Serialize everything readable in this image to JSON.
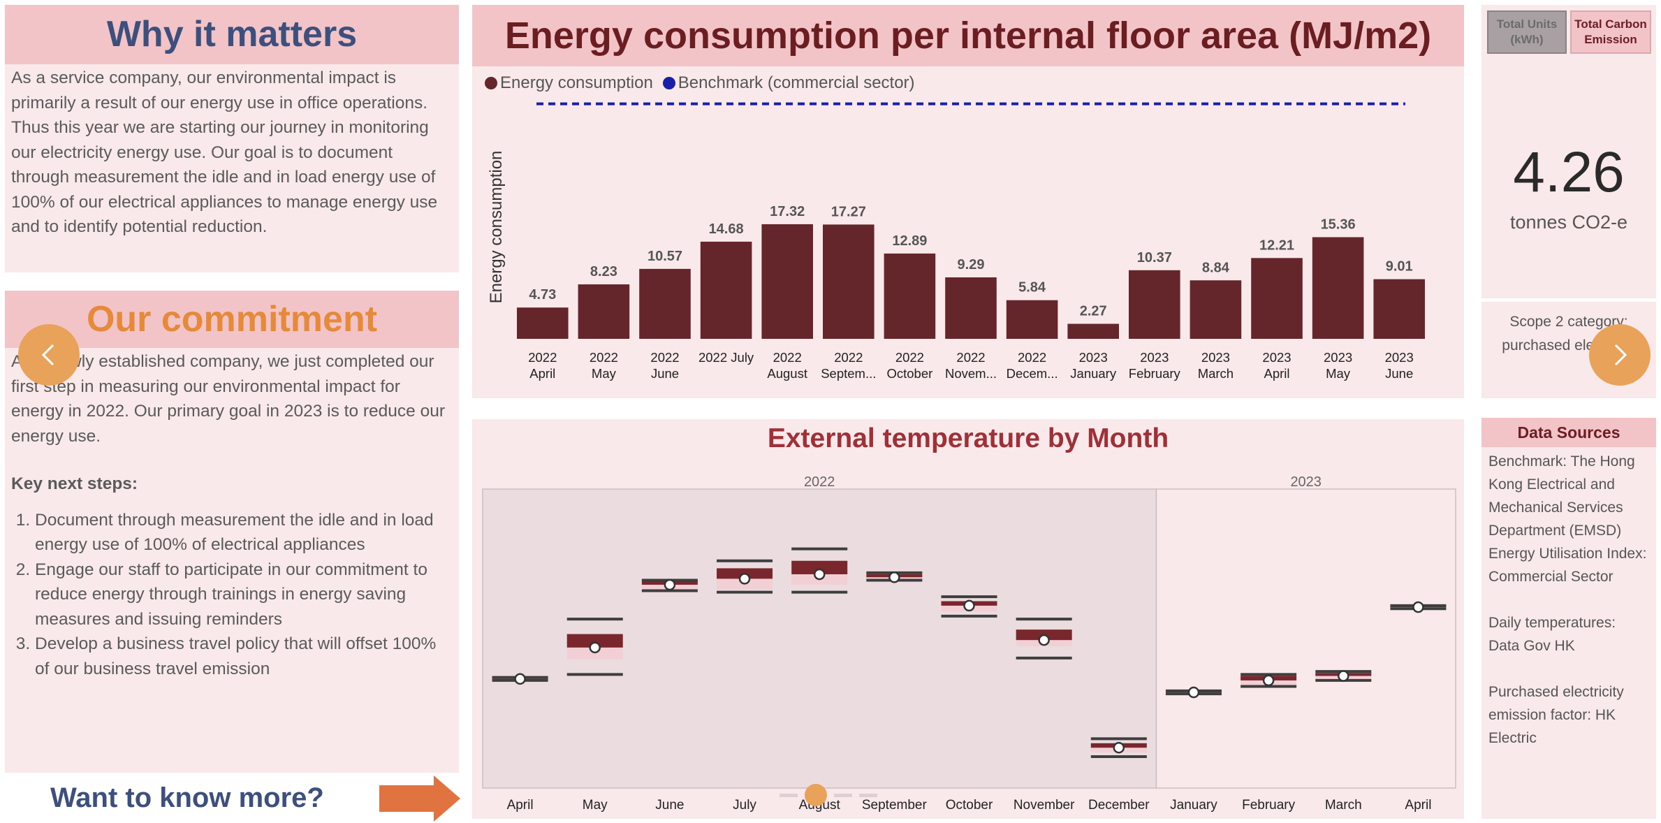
{
  "why": {
    "title": "Why it matters",
    "body": "As a service company, our environmental impact is primarily a result of our energy use in office operations. Thus this year we are starting our journey in monitoring our electricity energy use. Our goal is to document through measurement the idle and in load energy use of 100% of our electrical appliances to manage energy use and to identify potential reduction."
  },
  "commitment": {
    "title": "Our commitment",
    "body": "As a newly established company, we just completed our first step in measuring our environmental impact for energy in 2022. Our primary goal in 2023 is to reduce our energy use.",
    "key_label": "Key next steps:",
    "steps": [
      "Document through measurement the idle and in load energy use of 100% of electrical appliances",
      "Engage our staff to participate in our commitment to reduce energy through trainings in energy saving measures and issuing reminders",
      "Develop a business travel policy that will offset 100% of our business travel emission"
    ]
  },
  "more": {
    "label": "Want to know more?"
  },
  "energy": {
    "title": "Energy consumption per internal floor area (MJ/m2)",
    "legend": [
      {
        "label": "Energy consumption",
        "color": "#64262a"
      },
      {
        "label": "Benchmark (commercial sector)",
        "color": "#1a1fa8"
      }
    ]
  },
  "temp": {
    "title": "External temperature by Month"
  },
  "toggle": {
    "units_label": "Total Units (kWh)",
    "carbon_label": "Total Carbon Emission"
  },
  "kpi": {
    "value": "4.26",
    "unit": "tonnes CO2-e"
  },
  "scope": {
    "text": "Scope 2 category: purchased electricity"
  },
  "sources": {
    "title": "Data Sources",
    "items": [
      "Benchmark: The Hong Kong Electrical and Mechanical Services Department (EMSD) Energy Utilisation Index: Commercial Sector",
      "Daily temperatures: Data Gov HK",
      "Purchased electricity emission factor: HK Electric"
    ]
  },
  "nav": {
    "prev_icon": "chevron-left-icon",
    "next_icon": "chevron-right-icon",
    "accent": "#e8a25a"
  },
  "chart_data": [
    {
      "type": "bar",
      "title": "Energy consumption per internal floor area (MJ/m2)",
      "ylabel": "Energy consumption",
      "categories": [
        "2022 April",
        "2022 May",
        "2022 June",
        "2022 July",
        "2022 August",
        "2022 Septem...",
        "2022 October",
        "2022 Novem...",
        "2022 Decem...",
        "2023 January",
        "2023 February",
        "2023 March",
        "2023 April",
        "2023 May",
        "2023 June"
      ],
      "series": [
        {
          "name": "Energy consumption",
          "values": [
            4.73,
            8.23,
            10.57,
            14.68,
            17.32,
            17.27,
            12.89,
            9.29,
            5.84,
            2.27,
            10.37,
            8.84,
            12.21,
            15.36,
            9.01
          ],
          "color": "#64262a"
        },
        {
          "name": "Benchmark (commercial sector)",
          "values": [
            35.5,
            35.5,
            35.5,
            35.5,
            35.5,
            35.5,
            35.5,
            35.5,
            35.5,
            35.5,
            35.5,
            35.5,
            35.5,
            35.5,
            35.5
          ],
          "color": "#1a1fa8",
          "style": "dashed"
        }
      ],
      "ylim": [
        0,
        38
      ],
      "grid": false,
      "legend": "top-left"
    },
    {
      "type": "box",
      "title": "External temperature by Month",
      "groups": [
        {
          "name": "2022",
          "categories": [
            "April",
            "May",
            "June",
            "July",
            "August",
            "September",
            "October",
            "November",
            "December"
          ]
        },
        {
          "name": "2023",
          "categories": [
            "January",
            "February",
            "March",
            "April"
          ]
        }
      ],
      "series": [
        {
          "category": "April",
          "group": "2022",
          "min": 22.2,
          "q1": 22.2,
          "mean": 22.3,
          "q3": 22.4,
          "max": 22.4
        },
        {
          "category": "May",
          "group": "2022",
          "min": 22.6,
          "q1": 23.6,
          "mean": 24.4,
          "q3": 25.3,
          "max": 26.3
        },
        {
          "category": "June",
          "group": "2022",
          "min": 28.2,
          "q1": 28.3,
          "mean": 28.6,
          "q3": 28.9,
          "max": 28.9
        },
        {
          "category": "July",
          "group": "2022",
          "min": 28.1,
          "q1": 28.3,
          "mean": 29.0,
          "q3": 29.7,
          "max": 30.2
        },
        {
          "category": "August",
          "group": "2022",
          "min": 28.1,
          "q1": 28.6,
          "mean": 29.3,
          "q3": 30.2,
          "max": 31.0
        },
        {
          "category": "September",
          "group": "2022",
          "min": 28.9,
          "q1": 28.9,
          "mean": 29.1,
          "q3": 29.3,
          "max": 29.4
        },
        {
          "category": "October",
          "group": "2022",
          "min": 26.5,
          "q1": 26.8,
          "mean": 27.2,
          "q3": 27.5,
          "max": 27.8
        },
        {
          "category": "November",
          "group": "2022",
          "min": 23.7,
          "q1": 24.5,
          "mean": 24.9,
          "q3": 25.6,
          "max": 26.3
        },
        {
          "category": "December",
          "group": "2022",
          "min": 17.1,
          "q1": 17.4,
          "mean": 17.7,
          "q3": 18.0,
          "max": 18.3
        },
        {
          "category": "January",
          "group": "2023",
          "min": 21.3,
          "q1": 21.3,
          "mean": 21.4,
          "q3": 21.5,
          "max": 21.5
        },
        {
          "category": "February",
          "group": "2023",
          "min": 21.8,
          "q1": 21.9,
          "mean": 22.2,
          "q3": 22.5,
          "max": 22.6
        },
        {
          "category": "March",
          "group": "2023",
          "min": 22.2,
          "q1": 22.3,
          "mean": 22.5,
          "q3": 22.7,
          "max": 22.8
        },
        {
          "category": "April",
          "group": "2023",
          "min": 27.0,
          "q1": 27.0,
          "mean": 27.1,
          "q3": 27.2,
          "max": 27.2
        }
      ],
      "ylim": [
        15.0,
        35.0
      ],
      "grid": false
    }
  ]
}
